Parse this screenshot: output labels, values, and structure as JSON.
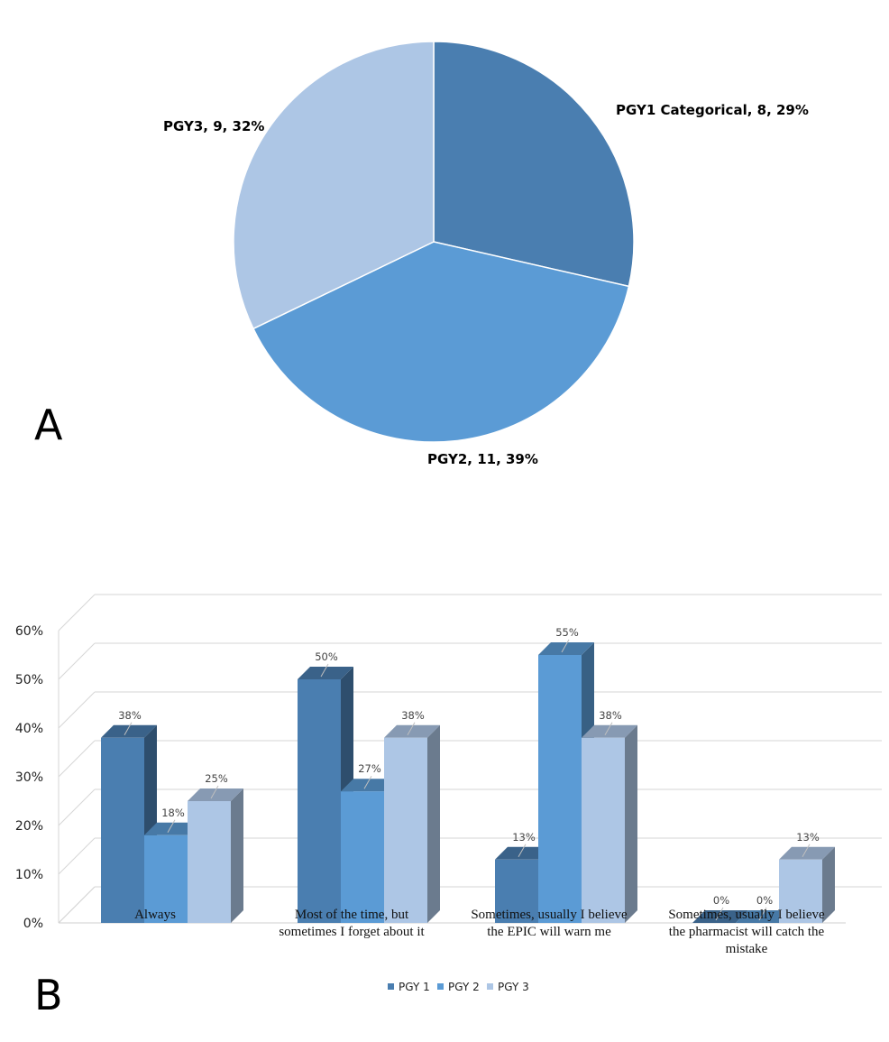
{
  "panels": {
    "a": "A",
    "b": "B"
  },
  "chart_data": [
    {
      "type": "pie",
      "slices": [
        {
          "label": "PGY1 Categorical, 8, 29%",
          "name": "PGY1 Categorical",
          "value": 8,
          "percent": 29,
          "color": "#4A7EB0"
        },
        {
          "label": "PGY2, 11, 39%",
          "name": "PGY2",
          "value": 11,
          "percent": 39,
          "color": "#5B9BD5"
        },
        {
          "label": "PGY3, 9, 32%",
          "name": "PGY3",
          "value": 9,
          "percent": 32,
          "color": "#ADC6E5"
        }
      ]
    },
    {
      "type": "bar",
      "style": "3d-clustered-column",
      "categories": [
        "Always",
        "Most of the time, but sometimes I forget about it",
        "Sometimes, usually I believe the EPIC will warn me",
        "Sometimes, usually I believe the pharmacist will catch the mistake"
      ],
      "category_lines": [
        [
          "Always"
        ],
        [
          "Most of the time, but",
          "sometimes I forget about it"
        ],
        [
          "Sometimes, usually I believe",
          "the EPIC will warn me"
        ],
        [
          "Sometimes, usually I believe",
          "the pharmacist will catch the",
          "mistake"
        ]
      ],
      "series": [
        {
          "name": "PGY 1",
          "values": [
            38,
            50,
            13,
            0
          ],
          "labels": [
            "38%",
            "50%",
            "13%",
            "0%"
          ],
          "color": "#4A7EB0"
        },
        {
          "name": "PGY 2",
          "values": [
            18,
            27,
            55,
            0
          ],
          "labels": [
            "18%",
            "27%",
            "55%",
            "0%"
          ],
          "color": "#5B9BD5"
        },
        {
          "name": "PGY 3",
          "values": [
            25,
            38,
            38,
            13
          ],
          "labels": [
            "25%",
            "38%",
            "38%",
            "13%"
          ],
          "color": "#ADC6E5"
        }
      ],
      "ylim": [
        0,
        60
      ],
      "yticks": [
        0,
        10,
        20,
        30,
        40,
        50,
        60
      ],
      "ytick_labels": [
        "0%",
        "10%",
        "20%",
        "30%",
        "40%",
        "50%",
        "60%"
      ],
      "grid": true,
      "legend": "bottom-center"
    }
  ]
}
